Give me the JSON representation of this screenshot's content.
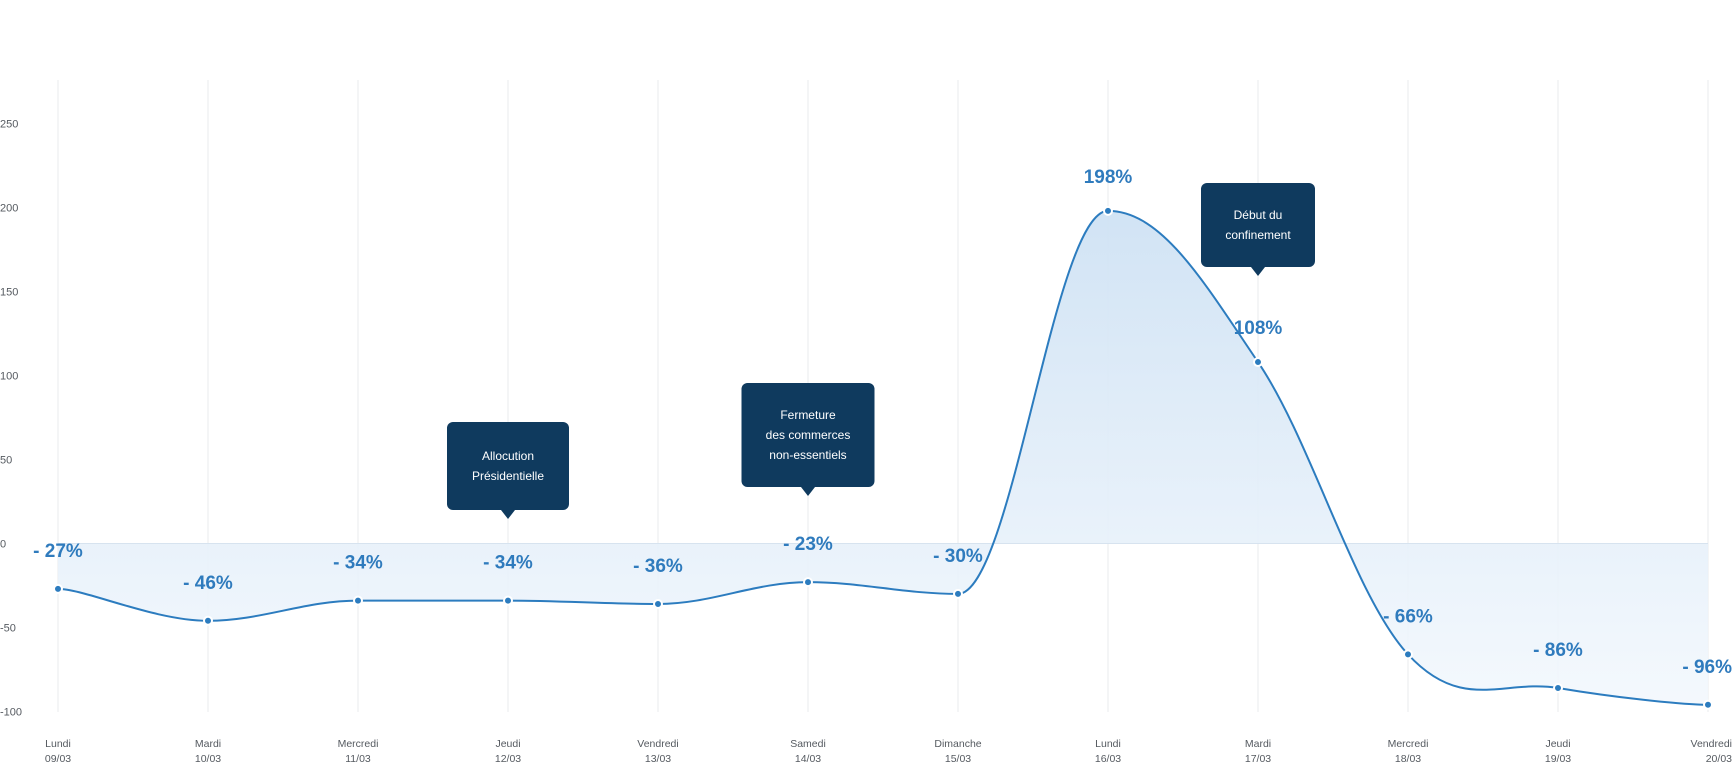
{
  "chart_data": {
    "type": "area",
    "title": "",
    "xlabel": "",
    "ylabel": "",
    "ylim": [
      -100,
      250
    ],
    "yticks": [
      250,
      200,
      150,
      100,
      50,
      0,
      -50,
      -100
    ],
    "grid": "vertical",
    "legend": "none",
    "colors": {
      "line": "#2c7cbf",
      "label": "#2f7bbd",
      "callout": "#0f3a5e",
      "fill_top": "#cfe2f4",
      "fill_bottom": "#f3f8fd"
    },
    "categories": [
      {
        "day": "Lundi",
        "date": "09/03"
      },
      {
        "day": "Mardi",
        "date": "10/03"
      },
      {
        "day": "Mercredi",
        "date": "11/03"
      },
      {
        "day": "Jeudi",
        "date": "12/03"
      },
      {
        "day": "Vendredi",
        "date": "13/03"
      },
      {
        "day": "Samedi",
        "date": "14/03"
      },
      {
        "day": "Dimanche",
        "date": "15/03"
      },
      {
        "day": "Lundi",
        "date": "16/03"
      },
      {
        "day": "Mardi",
        "date": "17/03"
      },
      {
        "day": "Mercredi",
        "date": "18/03"
      },
      {
        "day": "Jeudi",
        "date": "19/03"
      },
      {
        "day": "Vendredi",
        "date": "20/03"
      }
    ],
    "values": [
      -27,
      -46,
      -34,
      -34,
      -36,
      -23,
      -30,
      198,
      108,
      -66,
      -86,
      -96
    ],
    "data_labels": [
      "- 27%",
      "- 46%",
      "- 34%",
      "- 34%",
      "- 36%",
      "- 23%",
      "- 30%",
      "198%",
      "108%",
      "- 66%",
      "- 86%",
      "- 96%"
    ],
    "annotations": [
      {
        "index": 3,
        "lines": [
          "Allocution",
          "Présidentielle"
        ]
      },
      {
        "index": 5,
        "lines": [
          "Fermeture",
          "des commerces",
          "non-essentiels"
        ]
      },
      {
        "index": 8,
        "lines": [
          "Début du",
          "confinement"
        ]
      }
    ]
  }
}
